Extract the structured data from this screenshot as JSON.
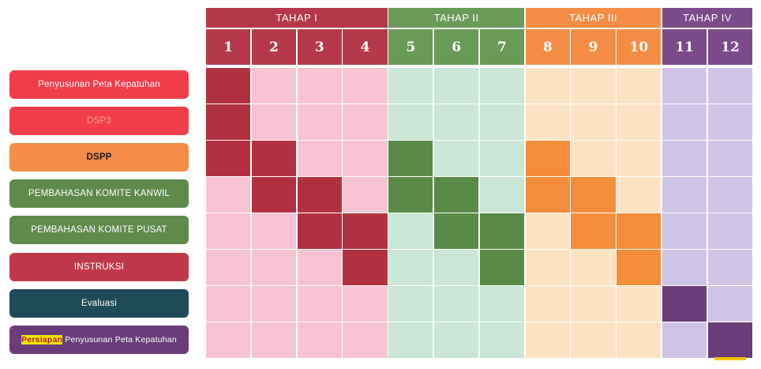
{
  "phases": [
    {
      "label": "TAHAP I",
      "color": "#b5394a",
      "cols": [
        1,
        4
      ]
    },
    {
      "label": "TAHAP II",
      "color": "#6a9a58",
      "cols": [
        5,
        7
      ]
    },
    {
      "label": "TAHAP III",
      "color": "#f58c45",
      "cols": [
        8,
        10
      ]
    },
    {
      "label": "TAHAP IV",
      "color": "#7a4a8a",
      "cols": [
        11,
        12
      ]
    }
  ],
  "columns": [
    "1",
    "2",
    "3",
    "4",
    "5",
    "6",
    "7",
    "8",
    "9",
    "10",
    "11",
    "12"
  ],
  "phase_tint_colors": [
    "#f7c3d3",
    "#c9e6d6",
    "#fde3c3",
    "#cfc4e6"
  ],
  "phase_active_colors": [
    "#b23140",
    "#5a8a47",
    "#f58c3a",
    "#6a3d7a"
  ],
  "rows": [
    {
      "label": "Penyusunan Peta Kepatuhan",
      "color": "#f03d4a",
      "active": [
        1
      ]
    },
    {
      "label": "DSP3",
      "color": "#f03d4a",
      "text_color": "#ff9a8a",
      "active": [
        1
      ]
    },
    {
      "label": "DSPP",
      "color": "#f58c45",
      "dark_text": true,
      "active": [
        1,
        2,
        5,
        8
      ]
    },
    {
      "label": "PEMBAHASAN KOMITE KANWIL",
      "color": "#5f8a4c",
      "active": [
        2,
        3,
        5,
        6,
        8,
        9
      ]
    },
    {
      "label": "PEMBAHASAN KOMITE PUSAT",
      "color": "#5f8a4c",
      "active": [
        3,
        4,
        6,
        7,
        9,
        10
      ]
    },
    {
      "label": "INSTRUKSI",
      "color": "#c0394a",
      "active": [
        4,
        7,
        10
      ]
    },
    {
      "label": "Evaluasi",
      "color": "#1f4a57",
      "active": [
        11
      ]
    },
    {
      "label_highlight": "Persiapan",
      "label_rest": " Penyusunan Peta Kepatuhan",
      "color": "#6a3d7a",
      "active": [
        12
      ]
    }
  ]
}
